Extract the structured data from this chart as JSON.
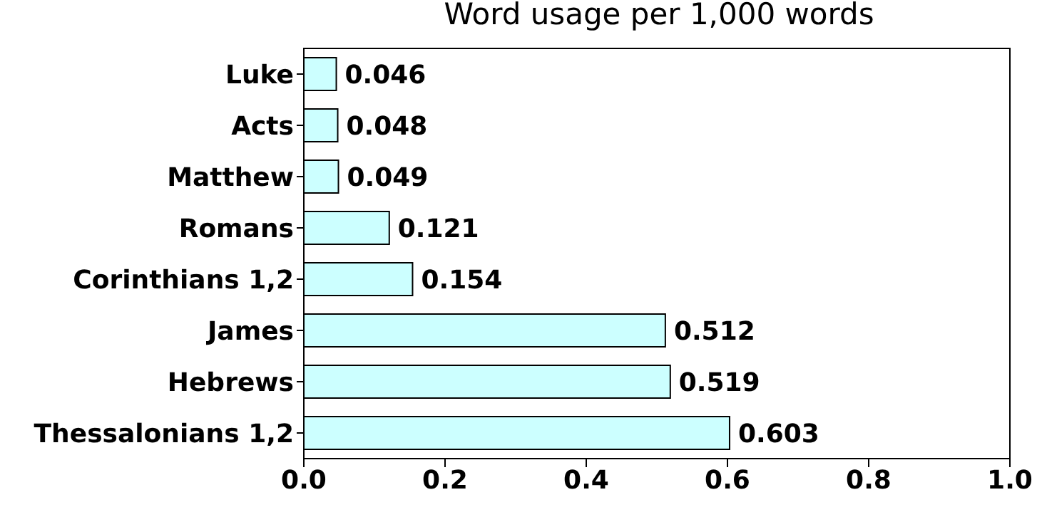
{
  "chart_data": {
    "type": "bar",
    "orientation": "horizontal",
    "title": "Word usage per 1,000 words",
    "categories": [
      "Luke",
      "Acts",
      "Matthew",
      "Romans",
      "Corinthians 1,2",
      "James",
      "Hebrews",
      "Thessalonians 1,2"
    ],
    "values": [
      0.046,
      0.048,
      0.049,
      0.121,
      0.154,
      0.512,
      0.519,
      0.603
    ],
    "color": "#ccffff",
    "xlim": [
      0,
      1
    ],
    "xticks": [
      "0.0",
      "0.2",
      "0.4",
      "0.6",
      "0.8",
      "1.0"
    ],
    "data_labels": true
  }
}
